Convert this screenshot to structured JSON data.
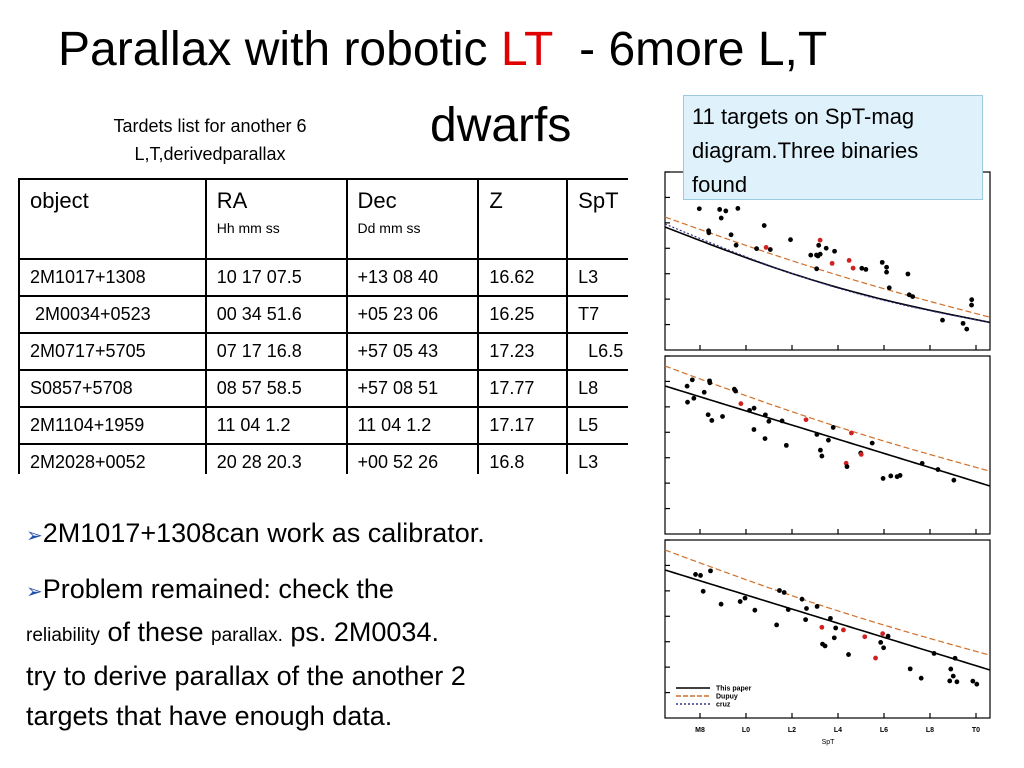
{
  "title": {
    "part1": "Parallax with robotic ",
    "highlight": "LT",
    "part2": "  - 6more L,T",
    "line2": "dwarfs"
  },
  "subtitle": {
    "line1": "Tardets list  for another 6",
    "line2": "L,T,derivedparallax"
  },
  "callout": "11 targets on SpT-mag diagram.Three binaries found",
  "table": {
    "header": [
      {
        "label": "object"
      },
      {
        "label": "RA",
        "sub": "Hh mm ss"
      },
      {
        "label": "Dec",
        "sub": "Dd mm ss"
      },
      {
        "label": "Z"
      },
      {
        "label": "SpT"
      }
    ],
    "rows": [
      [
        "2M1017+1308",
        "10 17 07.5",
        "+13 08 40",
        "16.62",
        "L3"
      ],
      [
        " 2M0034+0523",
        "00 34 51.6",
        "+05 23 06",
        "16.25",
        "T7"
      ],
      [
        "2M0717+5705",
        "07 17 16.8",
        "+57 05 43",
        "17.23",
        "  L6.5"
      ],
      [
        "S0857+5708",
        "08 57 58.5",
        "+57 08 51",
        "17.77",
        "L8"
      ],
      [
        "2M1104+1959",
        "11 04 1.2",
        "11 04 1.2",
        "17.17",
        "L5"
      ],
      [
        "2M2028+0052",
        "20 28 20.3",
        "+00 52 26",
        "16.8",
        "L3"
      ]
    ]
  },
  "bullets": [
    [
      "2M1017+1308can work as calibrator."
    ],
    [
      "Problem remained: check the",
      "reliability",
      "of these",
      "parallax.",
      "ps. 2M0034.",
      "try to derive parallax of the another 2",
      "targets that have enough data."
    ]
  ],
  "figure": {
    "xlabels": [
      "M8",
      "L0",
      "L2",
      "L4",
      "L6",
      "L8",
      "T0"
    ],
    "xtitle": "SpT",
    "legend": [
      "This paper",
      "Dupuy",
      "cruz"
    ]
  }
}
